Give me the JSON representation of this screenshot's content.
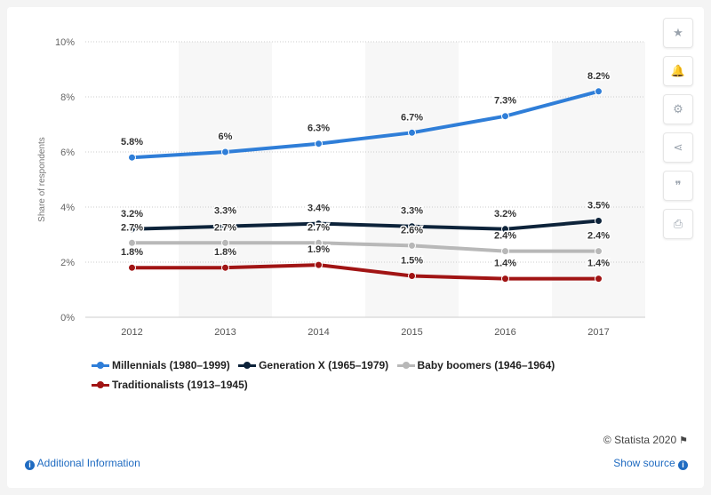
{
  "chart_data": {
    "type": "line",
    "title": "",
    "xlabel": "",
    "ylabel": "Share of respondents",
    "categories": [
      "2012",
      "2013",
      "2014",
      "2015",
      "2016",
      "2017"
    ],
    "ylim": [
      0,
      10
    ],
    "yticks": [
      0,
      2,
      4,
      6,
      8,
      10
    ],
    "ytick_labels": [
      "0%",
      "2%",
      "4%",
      "6%",
      "8%",
      "10%"
    ],
    "grid": true,
    "legend_position": "bottom-left",
    "series": [
      {
        "name": "Millennials (1980–1999)",
        "color": "#2f7ed8",
        "values": [
          5.8,
          6.0,
          6.3,
          6.7,
          7.3,
          8.2
        ],
        "labels": [
          "5.8%",
          "6%",
          "6.3%",
          "6.7%",
          "7.3%",
          "8.2%"
        ]
      },
      {
        "name": "Generation X (1965–1979)",
        "color": "#0d233a",
        "values": [
          3.2,
          3.3,
          3.4,
          3.3,
          3.2,
          3.5
        ],
        "labels": [
          "3.2%",
          "3.3%",
          "3.4%",
          "3.3%",
          "3.2%",
          "3.5%"
        ]
      },
      {
        "name": "Baby boomers (1946–1964)",
        "color": "#b8b8b8",
        "values": [
          2.7,
          2.7,
          2.7,
          2.6,
          2.4,
          2.4
        ],
        "labels": [
          "2.7%",
          "2.7%",
          "2.7%",
          "2.6%",
          "2.4%",
          "2.4%"
        ]
      },
      {
        "name": "Traditionalists (1913–1945)",
        "color": "#a11414",
        "values": [
          1.8,
          1.8,
          1.9,
          1.5,
          1.4,
          1.4
        ],
        "labels": [
          "1.8%",
          "1.8%",
          "1.9%",
          "1.5%",
          "1.4%",
          "1.4%"
        ]
      }
    ]
  },
  "toolbar": {
    "icons": [
      "star-icon",
      "bell-icon",
      "gear-icon",
      "share-icon",
      "quote-icon",
      "print-icon"
    ],
    "glyphs": [
      "★",
      "🔔",
      "⚙",
      "⋖",
      "❞",
      "⎙"
    ]
  },
  "footer": {
    "credit": "© Statista 2020",
    "additional_info": "Additional Information",
    "show_source": "Show source",
    "info_glyph": "i"
  }
}
